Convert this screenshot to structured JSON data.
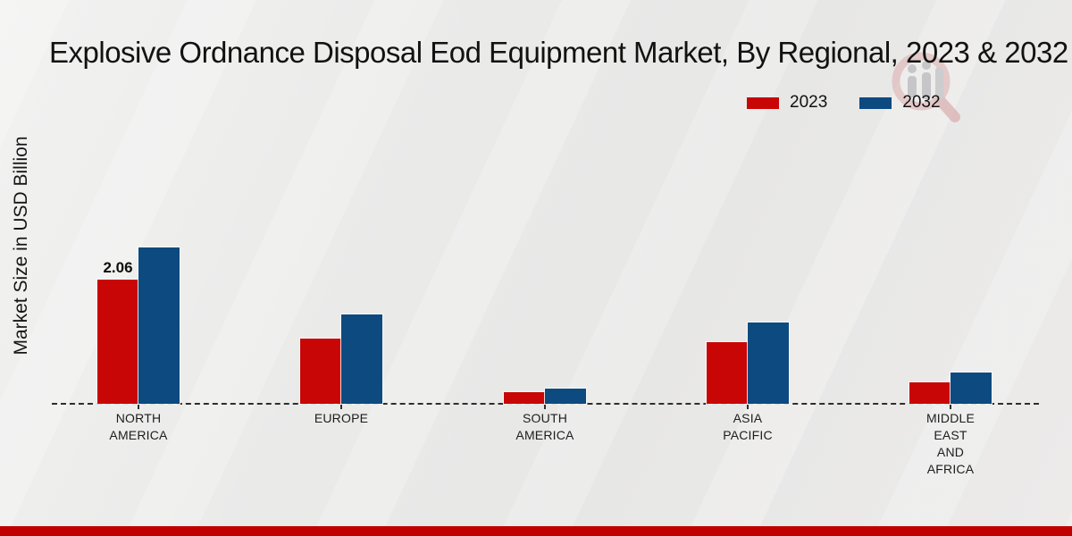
{
  "title": "Explosive Ordnance Disposal Eod Equipment Market, By Regional, 2023 & 2032",
  "y_axis_label": "Market Size in USD Billion",
  "colors": {
    "series_2023": "#c80606",
    "series_2032": "#0c4a80",
    "footer_band": "#c00000",
    "axis_dash": "#2e2e2e"
  },
  "legend": {
    "position": "top-right",
    "items": [
      {
        "label": "2023",
        "color": "#c80606"
      },
      {
        "label": "2032",
        "color": "#0c4a80"
      }
    ]
  },
  "watermark_icon": "market-research-magnifier-logo",
  "chart_data": {
    "type": "bar",
    "title": "Explosive Ordnance Disposal Eod Equipment Market, By Regional, 2023 & 2032",
    "xlabel": "",
    "ylabel": "Market Size in USD Billion",
    "categories": [
      "NORTH AMERICA",
      "EUROPE",
      "SOUTH AMERICA",
      "ASIA PACIFIC",
      "MIDDLE EAST AND AFRICA"
    ],
    "category_lines": [
      [
        "NORTH",
        "AMERICA"
      ],
      [
        "EUROPE"
      ],
      [
        "SOUTH",
        "AMERICA"
      ],
      [
        "ASIA",
        "PACIFIC"
      ],
      [
        "MIDDLE",
        "EAST",
        "AND",
        "AFRICA"
      ]
    ],
    "series": [
      {
        "name": "2023",
        "color": "#c80606",
        "values": [
          2.06,
          1.08,
          0.19,
          1.02,
          0.36
        ]
      },
      {
        "name": "2032",
        "color": "#0c4a80",
        "values": [
          2.59,
          1.48,
          0.25,
          1.35,
          0.52
        ]
      }
    ],
    "annotations": [
      {
        "series": "2023",
        "category": "NORTH AMERICA",
        "text": "2.06"
      }
    ],
    "ylim": [
      0,
      3
    ],
    "grid": false,
    "axis_style": "dashed-baseline-only",
    "legend_position": "top-right"
  }
}
